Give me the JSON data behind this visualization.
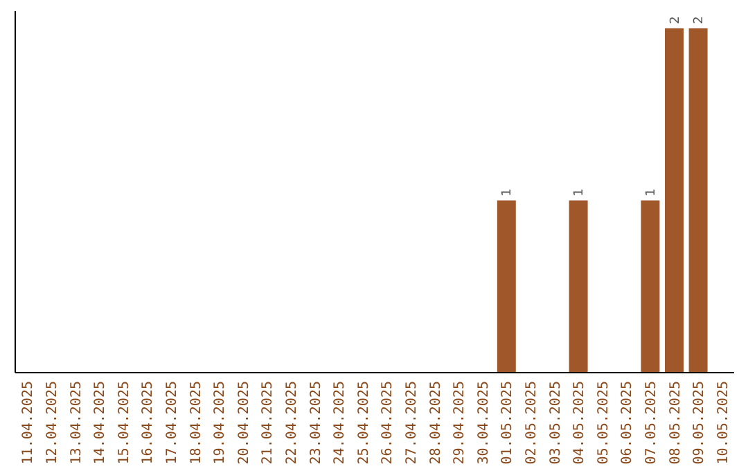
{
  "chart_data": {
    "type": "bar",
    "categories": [
      "11.04.2025",
      "12.04.2025",
      "13.04.2025",
      "14.04.2025",
      "15.04.2025",
      "16.04.2025",
      "17.04.2025",
      "18.04.2025",
      "19.04.2025",
      "20.04.2025",
      "21.04.2025",
      "22.04.2025",
      "23.04.2025",
      "24.04.2025",
      "25.04.2025",
      "26.04.2025",
      "27.04.2025",
      "28.04.2025",
      "29.04.2025",
      "30.04.2025",
      "01.05.2025",
      "02.05.2025",
      "03.05.2025",
      "04.05.2025",
      "05.05.2025",
      "06.05.2025",
      "07.05.2025",
      "08.05.2025",
      "09.05.2025",
      "10.05.2025"
    ],
    "values": [
      null,
      null,
      null,
      null,
      null,
      null,
      null,
      null,
      null,
      null,
      null,
      null,
      null,
      null,
      null,
      null,
      null,
      null,
      null,
      null,
      1,
      null,
      null,
      1,
      null,
      null,
      1,
      2,
      2,
      null
    ],
    "color": "#a0582a",
    "ylim": [
      0,
      2.1
    ],
    "data_labels": true,
    "tick_labels": "x"
  }
}
